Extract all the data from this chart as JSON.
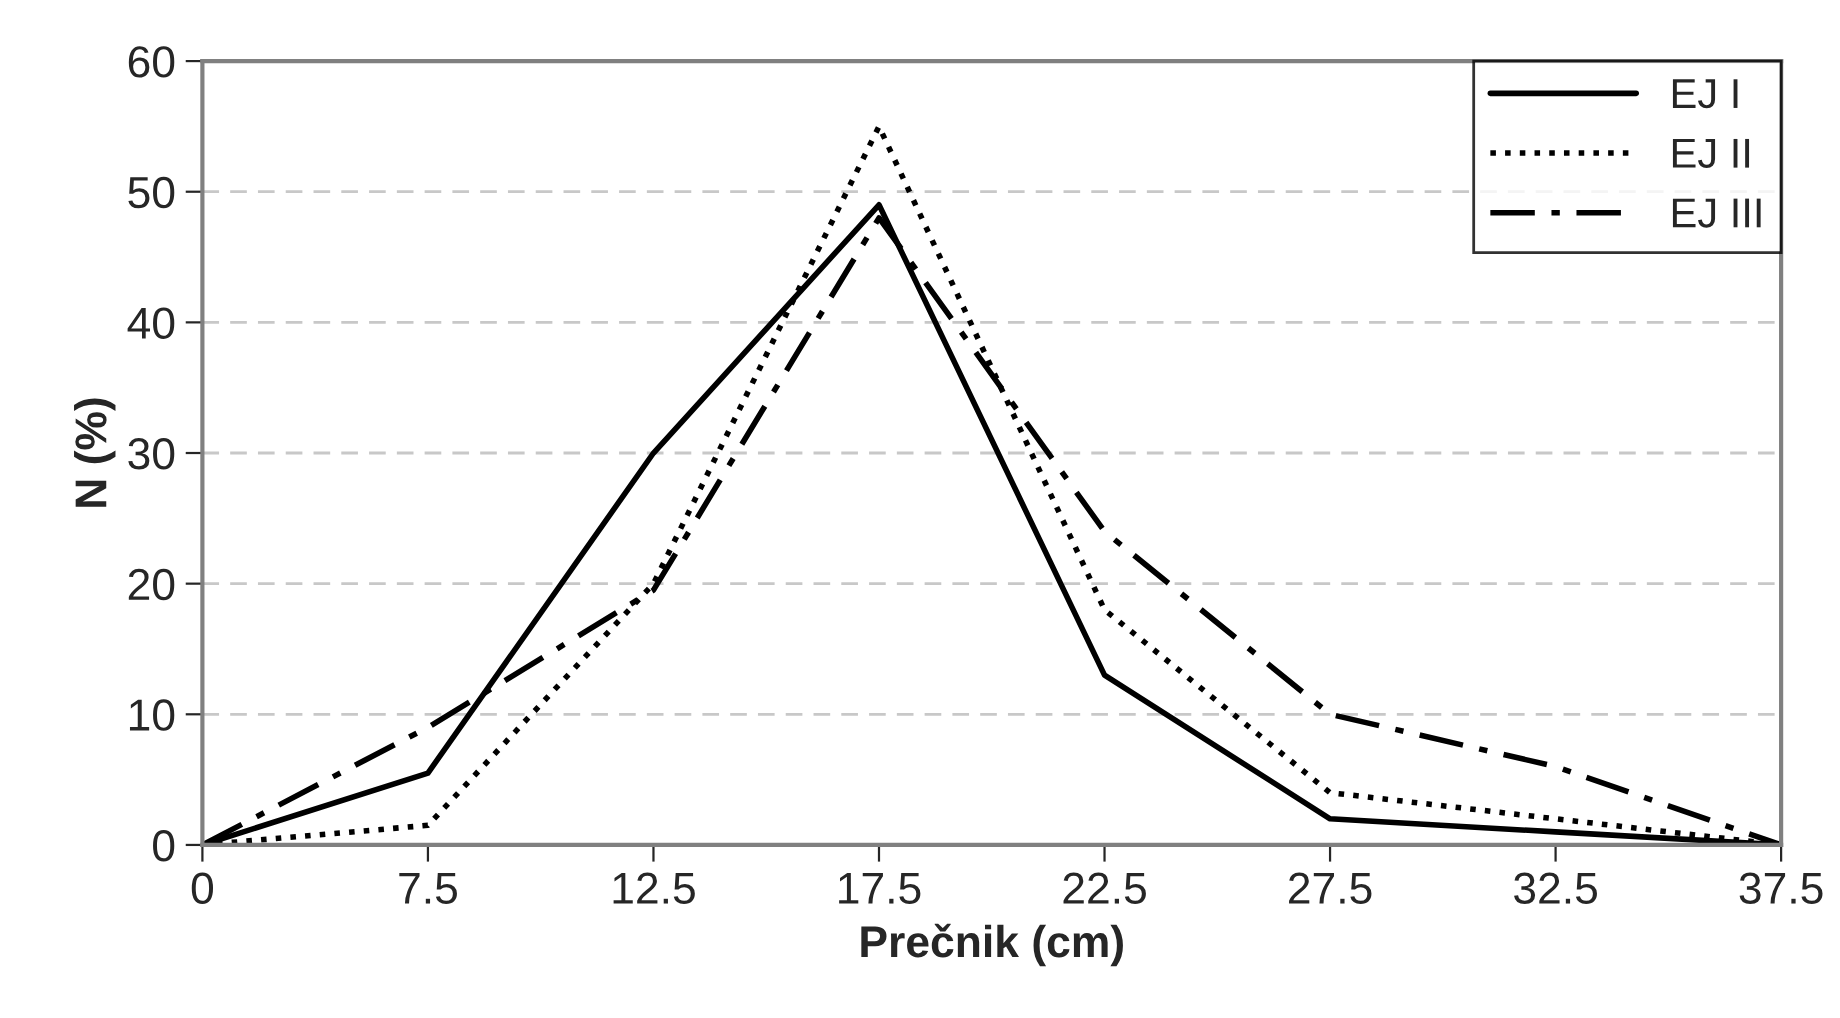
{
  "chart_data": {
    "type": "line",
    "xlabel": "Prečnik (cm)",
    "ylabel": "N (%)",
    "categories": [
      "0",
      "7.5",
      "12.5",
      "17.5",
      "22.5",
      "27.5",
      "32.5",
      "37.5"
    ],
    "series": [
      {
        "name": "EJ I",
        "color": "#000000",
        "line_style": "solid",
        "values": [
          0,
          5.5,
          30,
          49,
          13,
          2,
          1,
          0
        ]
      },
      {
        "name": "EJ II",
        "color": "#000000",
        "line_style": "dotted",
        "values": [
          0,
          1.5,
          20,
          55,
          18,
          4,
          2,
          0
        ]
      },
      {
        "name": "EJ III",
        "color": "#000000",
        "line_style": "dashdot",
        "values": [
          0,
          9,
          19.5,
          48,
          24,
          10,
          6,
          0
        ]
      }
    ],
    "ylim": [
      0,
      60
    ],
    "yticks": [
      0,
      10,
      20,
      30,
      40,
      50,
      60
    ],
    "grid": "y",
    "legend": "top right",
    "marker": "none"
  }
}
